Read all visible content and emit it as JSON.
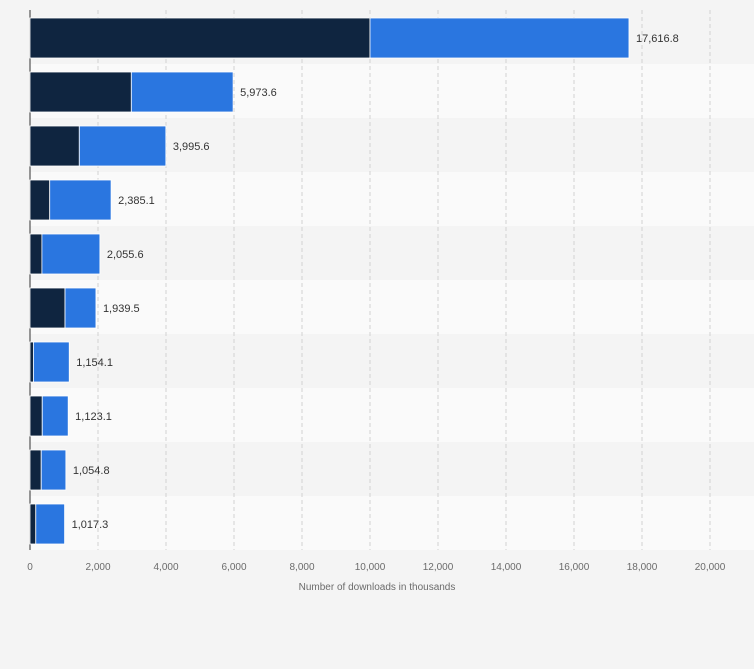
{
  "chart_data": {
    "type": "bar",
    "orientation": "horizontal",
    "stacked": true,
    "categories": [
      "",
      "",
      "",
      "",
      "",
      "",
      "",
      "",
      "",
      ""
    ],
    "series": [
      {
        "values": [
          10000,
          2980,
          1450,
          580,
          350,
          1030,
          100,
          360,
          330,
          170
        ],
        "color": "#0f2540"
      },
      {
        "values": [
          7616.8,
          2993.6,
          2545.6,
          1805.1,
          1705.6,
          909.5,
          1054.1,
          763.1,
          724.8,
          847.3
        ],
        "color": "#2a76e0"
      }
    ],
    "totals": [
      "17,616.8",
      "5,973.6",
      "3,995.6",
      "2,385.1",
      "2,055.6",
      "1,939.5",
      "1,154.1",
      "1,123.1",
      "1,054.8",
      "1,017.3"
    ],
    "xlabel": "Number of downloads in thousands",
    "xlim": [
      0,
      20000
    ],
    "xticks": [
      0,
      2000,
      4000,
      6000,
      8000,
      10000,
      12000,
      14000,
      16000,
      18000,
      20000
    ],
    "xtick_labels": [
      "0",
      "2,000",
      "4,000",
      "6,000",
      "8,000",
      "10,000",
      "12,000",
      "14,000",
      "16,000",
      "18,000",
      "20,000"
    ],
    "grid": true,
    "row_band_colors": [
      "#f4f4f4",
      "#fafafa"
    ]
  }
}
